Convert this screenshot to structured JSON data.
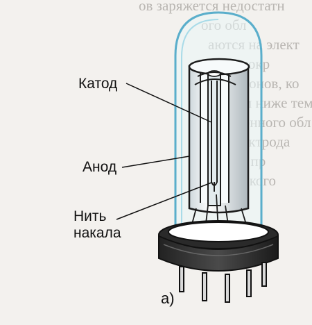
{
  "labels": {
    "cathode": "Катод",
    "anode": "Анод",
    "filament_line1": "Нить",
    "filament_line2": "накала",
    "subfigure": "а)"
  }
}
